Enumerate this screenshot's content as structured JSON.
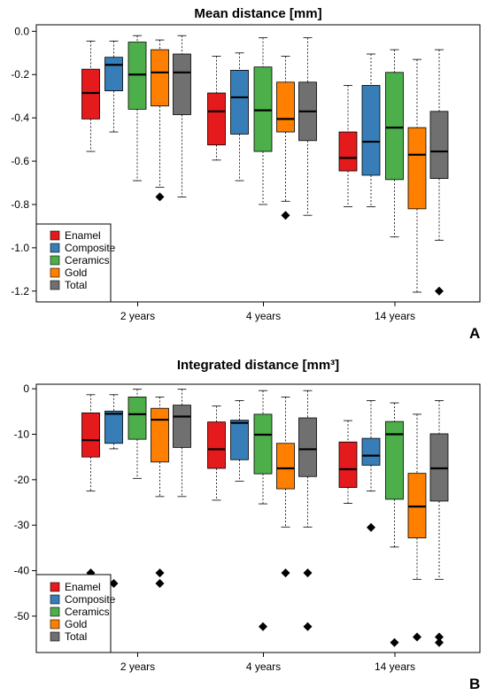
{
  "chart_data": [
    {
      "type": "box",
      "panel_label": "A",
      "title": "Mean distance [mm]",
      "xlabel": "",
      "ylabel": "",
      "ylim": [
        -1.25,
        0.03
      ],
      "yticks": [
        0.0,
        -0.2,
        -0.4,
        -0.6,
        -0.8,
        -1.0,
        -1.2
      ],
      "ytick_labels": [
        "0.0",
        "-0.2",
        "-0.4",
        "-0.6",
        "-0.8",
        "-1.0",
        "-1.2"
      ],
      "categories": [
        "2 years",
        "4 years",
        "14 years"
      ],
      "legend_position": "bottom-left",
      "series": [
        {
          "name": "Enamel",
          "color": "#e41a1c",
          "boxes": [
            {
              "whisker_low": -0.555,
              "q1": -0.405,
              "median": -0.285,
              "q3": -0.175,
              "whisker_high": -0.045,
              "outliers": []
            },
            {
              "whisker_low": -0.595,
              "q1": -0.525,
              "median": -0.37,
              "q3": -0.285,
              "whisker_high": -0.115,
              "outliers": []
            },
            {
              "whisker_low": -0.81,
              "q1": -0.645,
              "median": -0.585,
              "q3": -0.465,
              "whisker_high": -0.25,
              "outliers": []
            }
          ]
        },
        {
          "name": "Composite",
          "color": "#377eb8",
          "boxes": [
            {
              "whisker_low": -0.465,
              "q1": -0.275,
              "median": -0.155,
              "q3": -0.12,
              "whisker_high": -0.045,
              "outliers": []
            },
            {
              "whisker_low": -0.69,
              "q1": -0.475,
              "median": -0.305,
              "q3": -0.18,
              "whisker_high": -0.1,
              "outliers": []
            },
            {
              "whisker_low": -0.81,
              "q1": -0.665,
              "median": -0.51,
              "q3": -0.25,
              "whisker_high": -0.105,
              "outliers": []
            }
          ]
        },
        {
          "name": "Ceramics",
          "color": "#4daf4a",
          "boxes": [
            {
              "whisker_low": -0.69,
              "q1": -0.36,
              "median": -0.2,
              "q3": -0.05,
              "whisker_high": -0.02,
              "outliers": []
            },
            {
              "whisker_low": -0.8,
              "q1": -0.555,
              "median": -0.365,
              "q3": -0.165,
              "whisker_high": -0.03,
              "outliers": []
            },
            {
              "whisker_low": -0.95,
              "q1": -0.685,
              "median": -0.445,
              "q3": -0.19,
              "whisker_high": -0.085,
              "outliers": []
            }
          ]
        },
        {
          "name": "Gold",
          "color": "#ff7f00",
          "boxes": [
            {
              "whisker_low": -0.72,
              "q1": -0.345,
              "median": -0.19,
              "q3": -0.085,
              "whisker_high": -0.04,
              "outliers": [
                -0.765
              ]
            },
            {
              "whisker_low": -0.785,
              "q1": -0.465,
              "median": -0.405,
              "q3": -0.235,
              "whisker_high": -0.115,
              "outliers": [
                -0.85
              ]
            },
            {
              "whisker_low": -1.205,
              "q1": -0.82,
              "median": -0.57,
              "q3": -0.445,
              "whisker_high": -0.13,
              "outliers": []
            }
          ]
        },
        {
          "name": "Total",
          "color": "#707070",
          "boxes": [
            {
              "whisker_low": -0.765,
              "q1": -0.385,
              "median": -0.19,
              "q3": -0.105,
              "whisker_high": -0.02,
              "outliers": []
            },
            {
              "whisker_low": -0.85,
              "q1": -0.505,
              "median": -0.37,
              "q3": -0.235,
              "whisker_high": -0.03,
              "outliers": []
            },
            {
              "whisker_low": -0.965,
              "q1": -0.68,
              "median": -0.555,
              "q3": -0.37,
              "whisker_high": -0.085,
              "outliers": [
                -1.2
              ]
            }
          ]
        }
      ]
    },
    {
      "type": "box",
      "panel_label": "B",
      "title": "Integrated distance [mm³]",
      "xlabel": "",
      "ylabel": "",
      "ylim": [
        -58.0,
        1.0
      ],
      "yticks": [
        0,
        -10,
        -20,
        -30,
        -40,
        -50
      ],
      "ytick_labels": [
        "0",
        "-10",
        "-20",
        "-30",
        "-40",
        "-50"
      ],
      "categories": [
        "2 years",
        "4 years",
        "14 years"
      ],
      "legend_position": "bottom-left",
      "series": [
        {
          "name": "Enamel",
          "color": "#e41a1c",
          "boxes": [
            {
              "whisker_low": -22.5,
              "q1": -15.0,
              "median": -11.3,
              "q3": -5.3,
              "whisker_high": -1.3,
              "outliers": [
                -40.5
              ]
            },
            {
              "whisker_low": -24.5,
              "q1": -17.5,
              "median": -13.3,
              "q3": -7.3,
              "whisker_high": -3.8,
              "outliers": []
            },
            {
              "whisker_low": -25.2,
              "q1": -21.7,
              "median": -17.7,
              "q3": -11.7,
              "whisker_high": -7.0,
              "outliers": []
            }
          ]
        },
        {
          "name": "Composite",
          "color": "#377eb8",
          "boxes": [
            {
              "whisker_low": -13.2,
              "q1": -12.0,
              "median": -5.5,
              "q3": -4.9,
              "whisker_high": -1.3,
              "outliers": [
                -42.8
              ]
            },
            {
              "whisker_low": -20.3,
              "q1": -15.6,
              "median": -7.5,
              "q3": -6.9,
              "whisker_high": -2.6,
              "outliers": []
            },
            {
              "whisker_low": -22.5,
              "q1": -16.8,
              "median": -14.7,
              "q3": -10.9,
              "whisker_high": -2.6,
              "outliers": [
                -30.5
              ]
            }
          ]
        },
        {
          "name": "Ceramics",
          "color": "#4daf4a",
          "boxes": [
            {
              "whisker_low": -19.7,
              "q1": -11.1,
              "median": -5.6,
              "q3": -1.8,
              "whisker_high": -0.1,
              "outliers": []
            },
            {
              "whisker_low": -25.3,
              "q1": -18.7,
              "median": -10.1,
              "q3": -5.6,
              "whisker_high": -0.4,
              "outliers": [
                -52.3
              ]
            },
            {
              "whisker_low": -34.8,
              "q1": -24.3,
              "median": -10.0,
              "q3": -7.2,
              "whisker_high": -3.1,
              "outliers": [
                -55.8
              ]
            }
          ]
        },
        {
          "name": "Gold",
          "color": "#ff7f00",
          "boxes": [
            {
              "whisker_low": -23.7,
              "q1": -16.1,
              "median": -6.8,
              "q3": -4.3,
              "whisker_high": -1.8,
              "outliers": [
                -42.8,
                -40.5
              ]
            },
            {
              "whisker_low": -30.4,
              "q1": -22.0,
              "median": -17.5,
              "q3": -12.0,
              "whisker_high": -1.8,
              "outliers": [
                -40.5
              ]
            },
            {
              "whisker_low": -41.9,
              "q1": -32.8,
              "median": -25.9,
              "q3": -18.6,
              "whisker_high": -5.6,
              "outliers": [
                -54.6
              ]
            }
          ]
        },
        {
          "name": "Total",
          "color": "#707070",
          "boxes": [
            {
              "whisker_low": -23.7,
              "q1": -12.9,
              "median": -6.1,
              "q3": -3.6,
              "whisker_high": -0.1,
              "outliers": []
            },
            {
              "whisker_low": -30.4,
              "q1": -19.3,
              "median": -13.3,
              "q3": -6.4,
              "whisker_high": -0.4,
              "outliers": [
                -40.5,
                -52.3
              ]
            },
            {
              "whisker_low": -41.9,
              "q1": -24.7,
              "median": -17.5,
              "q3": -9.9,
              "whisker_high": -2.6,
              "outliers": [
                -54.6,
                -55.8
              ]
            }
          ]
        }
      ]
    }
  ]
}
